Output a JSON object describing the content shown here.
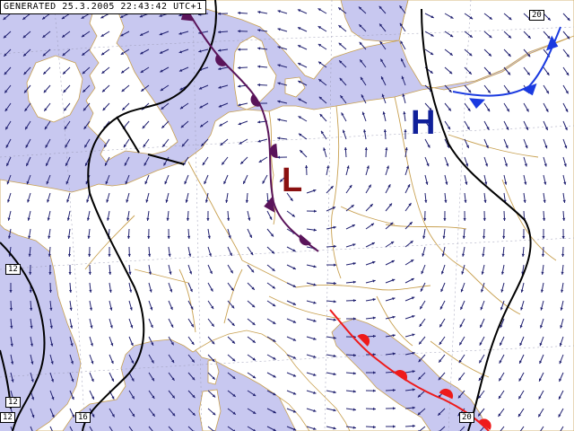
{
  "header": {
    "stamp": "GENERATED 25.3.2005 22:43:42 UTC+1"
  },
  "colors": {
    "sea": "#c8c8f0",
    "land": "#ffffff",
    "border": "#c8a050",
    "isobar": "#000000",
    "wind_arrow": "#202070",
    "occluded_front": "#5a145a",
    "cold_front": "#1a3ae0",
    "warm_front": "#ee1a1a",
    "high_label": "#10209a",
    "low_label": "#8a1010"
  },
  "pressure_centers": {
    "high": "H",
    "low": "L"
  },
  "isobar_labels": [
    "12",
    "12",
    "12",
    "16",
    "20",
    "20"
  ],
  "fronts": {
    "occluded": "occluded-front",
    "cold": "cold-front",
    "warm": "warm-front"
  }
}
